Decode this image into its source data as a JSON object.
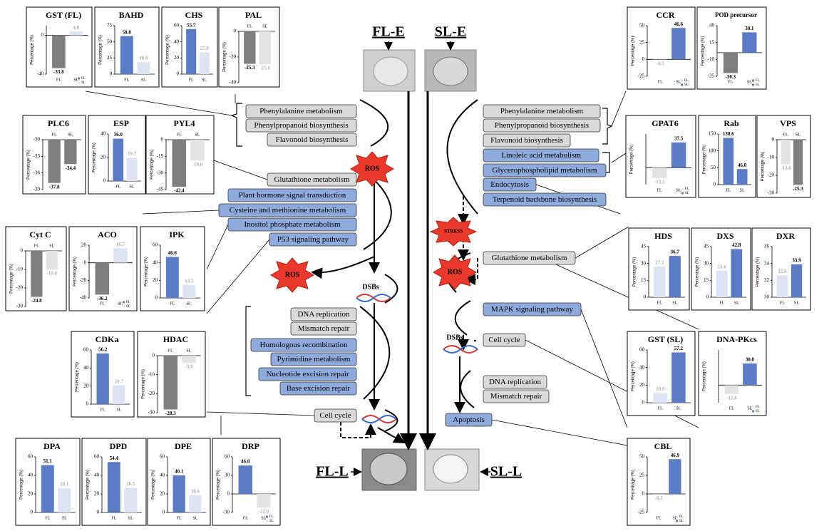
{
  "labels": {
    "fl_e": "FL-E",
    "sl_e": "SL-E",
    "fl_l": "FL-L",
    "sl_l": "SL-L",
    "ros": "ROS",
    "stress": "STRESS",
    "dsbs": "DSBs"
  },
  "y_axis_label": "Percentage (%)",
  "categories": [
    "FL",
    "SL"
  ],
  "pathways": [
    {
      "label": "Phenylalanine metabolism",
      "color": "#d9d9d9"
    },
    {
      "label": "Phenylpropanoid biosynthesis",
      "color": "#d9d9d9"
    },
    {
      "label": "Flavonoid biosynthesis",
      "color": "#d9d9d9"
    },
    {
      "label": "Glutathione metabolism",
      "color": "#d9d9d9"
    },
    {
      "label": "Plant hormone signal transduction",
      "color": "#8faadc"
    },
    {
      "label": "Cysteine and methionine metabolism",
      "color": "#8faadc"
    },
    {
      "label": "Inositol phosphate metabolism",
      "color": "#8faadc"
    },
    {
      "label": "P53 signaling pathway",
      "color": "#8faadc"
    },
    {
      "label": "DNA replication",
      "color": "#d9d9d9"
    },
    {
      "label": "Mismatch repair",
      "color": "#d9d9d9"
    },
    {
      "label": "Homologous recombination",
      "color": "#8faadc"
    },
    {
      "label": "Pyrimidine metabolism",
      "color": "#8faadc"
    },
    {
      "label": "Nucleotide excision repair",
      "color": "#8faadc"
    },
    {
      "label": "Base excision repair",
      "color": "#8faadc"
    },
    {
      "label": "Cell cycle",
      "color": "#d9d9d9"
    },
    {
      "label": "Phenylalanine metabolism",
      "color": "#d9d9d9"
    },
    {
      "label": "Phenylpropanoid biosynthesis",
      "color": "#d9d9d9"
    },
    {
      "label": "Flavonoid biosynthesis",
      "color": "#d9d9d9"
    },
    {
      "label": "Linoleic acid metabolism",
      "color": "#8faadc"
    },
    {
      "label": "Glycerophospholipid metabolism",
      "color": "#8faadc"
    },
    {
      "label": "Endocytosis",
      "color": "#8faadc"
    },
    {
      "label": "Terpenoid backbone biosynthesis",
      "color": "#8faadc"
    },
    {
      "label": "Glutathione metabolism",
      "color": "#d9d9d9"
    },
    {
      "label": "MAPK signaling pathway",
      "color": "#8faadc"
    },
    {
      "label": "Cell cycle",
      "color": "#d9d9d9"
    },
    {
      "label": "DNA replication",
      "color": "#d9d9d9"
    },
    {
      "label": "Mismatch repair",
      "color": "#d9d9d9"
    },
    {
      "label": "Apoptosis",
      "color": "#8faadc"
    }
  ],
  "charts": [
    {
      "title": "GST (FL)",
      "values": [
        -33.8,
        4
      ],
      "value_labels": [
        "-33.8",
        "4.0"
      ],
      "colors": [
        "#7f7f7f",
        "#dde3f3"
      ],
      "ylim": [
        -40,
        10
      ],
      "yticks": [
        -40,
        0
      ],
      "legend": true
    },
    {
      "title": "BAHD",
      "values": [
        58.8,
        18.6
      ],
      "colors": [
        "#5b7bc5",
        "#dde3f3"
      ],
      "ylim": [
        0,
        75
      ],
      "yticks": [
        0,
        25,
        50,
        75
      ]
    },
    {
      "title": "CHS",
      "values": [
        55.7,
        27.0
      ],
      "value_labels": [
        "55.7",
        "27.0"
      ],
      "colors": [
        "#5b7bc5",
        "#dde3f3"
      ],
      "ylim": [
        0,
        60
      ],
      "yticks": [
        0,
        20,
        40,
        60
      ]
    },
    {
      "title": "PAL",
      "values": [
        -25.3,
        -25.6
      ],
      "colors": [
        "#7f7f7f",
        "#e3e3e3"
      ],
      "ylim": [
        -40,
        0
      ],
      "yticks": [
        -40,
        -20,
        0
      ]
    },
    {
      "title": "CCR",
      "values": [
        -0.5,
        46.6
      ],
      "colors": [
        "#d9d9d9",
        "#5b7bc5"
      ],
      "ylim": [
        -25,
        50
      ],
      "yticks": [
        -25,
        0,
        25,
        50
      ],
      "legend": true
    },
    {
      "title": "POD precursor",
      "values": [
        -30.3,
        30.1
      ],
      "colors": [
        "#7f7f7f",
        "#5b7bc5"
      ],
      "ylim": [
        -35,
        40
      ],
      "yticks": [
        -35,
        -10,
        15,
        40
      ],
      "legend": true
    },
    {
      "title": "PLC6",
      "values": [
        -37.8,
        -34.4
      ],
      "colors": [
        "#7f7f7f",
        "#7f7f7f"
      ],
      "ylim": [
        -39,
        -30
      ],
      "yticks": [
        -39,
        -36,
        -33,
        -30
      ]
    },
    {
      "title": "ESP",
      "values": [
        36,
        19.7
      ],
      "value_labels": [
        "36.0",
        "19.7"
      ],
      "colors": [
        "#5b7bc5",
        "#dde3f3"
      ],
      "ylim": [
        0,
        40
      ],
      "yticks": [
        0,
        20,
        40
      ]
    },
    {
      "title": "PYL4",
      "values": [
        -42.4,
        -19.0
      ],
      "value_labels": [
        "-42.4",
        "-19.0"
      ],
      "colors": [
        "#7f7f7f",
        "#e3e3e3"
      ],
      "ylim": [
        -45,
        0
      ],
      "yticks": [
        -45,
        -30,
        -15,
        0
      ]
    },
    {
      "title": "GPAT6",
      "values": [
        -15.3,
        37.5
      ],
      "colors": [
        "#e3e3e3",
        "#5b7bc5"
      ],
      "ylim": [
        -25,
        50
      ],
      "legend": true
    },
    {
      "title": "Rab",
      "values": [
        138.6,
        46.0
      ],
      "value_labels": [
        "138.6",
        "46.0"
      ],
      "colors": [
        "#5b7bc5",
        "#5b7bc5"
      ],
      "ylim": [
        0,
        150
      ],
      "yticks": [
        0,
        50,
        100,
        150
      ]
    },
    {
      "title": "VPS",
      "values": [
        -13.8,
        -25.3
      ],
      "colors": [
        "#e3e3e3",
        "#7f7f7f"
      ],
      "ylim": [
        -30,
        0
      ],
      "yticks": [
        -30,
        -20,
        -10,
        0
      ]
    },
    {
      "title": "Cyt C",
      "values": [
        -24.8,
        -10
      ],
      "value_labels": [
        "-24.8",
        "-10.0"
      ],
      "colors": [
        "#7f7f7f",
        "#e3e3e3"
      ],
      "ylim": [
        -30,
        0
      ],
      "yticks": [
        -30,
        -20,
        -10,
        0
      ]
    },
    {
      "title": "ACO",
      "values": [
        -36.2,
        16.5
      ],
      "colors": [
        "#7f7f7f",
        "#dde3f3"
      ],
      "ylim": [
        -40,
        20
      ],
      "yticks": [
        -40,
        -20,
        0,
        20
      ],
      "legend": true
    },
    {
      "title": "IPK",
      "values": [
        46.6,
        14.5
      ],
      "colors": [
        "#5b7bc5",
        "#dde3f3"
      ],
      "ylim": [
        0,
        60
      ],
      "yticks": [
        0,
        20,
        40,
        60
      ]
    },
    {
      "title": "HDS",
      "values": [
        27.3,
        36.7
      ],
      "colors": [
        "#dde3f3",
        "#5b7bc5"
      ],
      "ylim": [
        0,
        45
      ],
      "yticks": [
        0,
        15,
        30,
        45
      ]
    },
    {
      "title": "DXS",
      "values": [
        23.6,
        42.8
      ],
      "colors": [
        "#dde3f3",
        "#5b7bc5"
      ],
      "ylim": [
        0,
        45
      ],
      "yticks": [
        0,
        15,
        30,
        45
      ]
    },
    {
      "title": "DXR",
      "values": [
        32.6,
        33.9
      ],
      "colors": [
        "#dde3f3",
        "#5b7bc5"
      ],
      "ylim": [
        30,
        36
      ],
      "yticks": [
        30,
        32,
        34,
        36
      ]
    },
    {
      "title": "CDKa",
      "values": [
        56.2,
        20.7
      ],
      "colors": [
        "#5b7bc5",
        "#dde3f3"
      ],
      "ylim": [
        0,
        60
      ],
      "yticks": [
        0,
        20,
        40,
        60
      ]
    },
    {
      "title": "HDAC",
      "values": [
        -28.3,
        -3.8
      ],
      "colors": [
        "#7f7f7f",
        "#e3e3e3"
      ],
      "ylim": [
        -30,
        0
      ],
      "yticks": [
        -30,
        -20,
        -10,
        0
      ]
    },
    {
      "title": "GST (SL)",
      "values": [
        10.9,
        57.2
      ],
      "colors": [
        "#dde3f3",
        "#5b7bc5"
      ],
      "ylim": [
        0,
        60
      ],
      "yticks": [
        0,
        20,
        40,
        60
      ]
    },
    {
      "title": "DNA-PKcs",
      "values": [
        -12.6,
        30.8
      ],
      "colors": [
        "#e3e3e3",
        "#5b7bc5"
      ],
      "ylim": [
        -25,
        50
      ],
      "legend": true
    },
    {
      "title": "DPA",
      "values": [
        51.1,
        26.1
      ],
      "colors": [
        "#5b7bc5",
        "#dde3f3"
      ],
      "ylim": [
        0,
        60
      ],
      "yticks": [
        0,
        20,
        40,
        60
      ]
    },
    {
      "title": "DPD",
      "values": [
        54.4,
        26.5
      ],
      "colors": [
        "#5b7bc5",
        "#dde3f3"
      ],
      "ylim": [
        0,
        60
      ],
      "yticks": [
        0,
        20,
        40,
        60
      ]
    },
    {
      "title": "DPE",
      "values": [
        40.1,
        18.6
      ],
      "colors": [
        "#5b7bc5",
        "#dde3f3"
      ],
      "ylim": [
        0,
        60
      ],
      "yticks": [
        0,
        20,
        40,
        60
      ]
    },
    {
      "title": "DRP",
      "values": [
        46,
        -22
      ],
      "value_labels": [
        "46.0",
        "-22.0"
      ],
      "colors": [
        "#5b7bc5",
        "#e3e3e3"
      ],
      "ylim": [
        -30,
        60
      ],
      "yticks": [
        -30,
        0,
        30,
        60
      ],
      "legend": true
    },
    {
      "title": "CBL",
      "values": [
        -0.2,
        46.9
      ],
      "colors": [
        "#d9d9d9",
        "#5b7bc5"
      ],
      "ylim": [
        -25,
        50
      ],
      "yticks": [
        -25,
        0,
        25,
        50
      ],
      "legend": true
    }
  ]
}
